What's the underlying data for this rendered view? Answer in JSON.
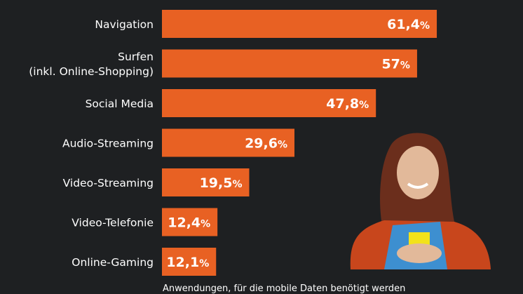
{
  "chart_data": {
    "type": "bar",
    "orientation": "horizontal",
    "title": "",
    "xlabel": "Anwendungen, für die mobile Daten benötigt werden",
    "ylabel": "",
    "unit": "%",
    "categories": [
      [
        "Navigation"
      ],
      [
        "Surfen",
        "(inkl. Online-Shopping)"
      ],
      [
        "Social Media"
      ],
      [
        "Audio-Streaming"
      ],
      [
        "Video-Streaming"
      ],
      [
        "Video-Telefonie"
      ],
      [
        "Online-Gaming"
      ]
    ],
    "values": [
      61.4,
      57,
      47.8,
      29.6,
      19.5,
      12.4,
      12.1
    ],
    "value_labels": [
      "61,4",
      "57",
      "47,8",
      "29,6",
      "19,5",
      "12,4",
      "12,1"
    ],
    "xlim": [
      0,
      100
    ],
    "grid": false,
    "legend": "none",
    "colors": {
      "bar": "#e86123",
      "background": "#1e2022",
      "text": "#ffffff"
    }
  },
  "caption": "Anwendungen, für die mobile Daten benötigt werden",
  "illustration": {
    "name": "woman-with-smartphone",
    "colors": {
      "hair": "#6b2e1c",
      "cardigan": "#c8461c",
      "shirt": "#3d8fd0",
      "phone": "#f2e21a",
      "skin": "#e2b99a"
    }
  }
}
